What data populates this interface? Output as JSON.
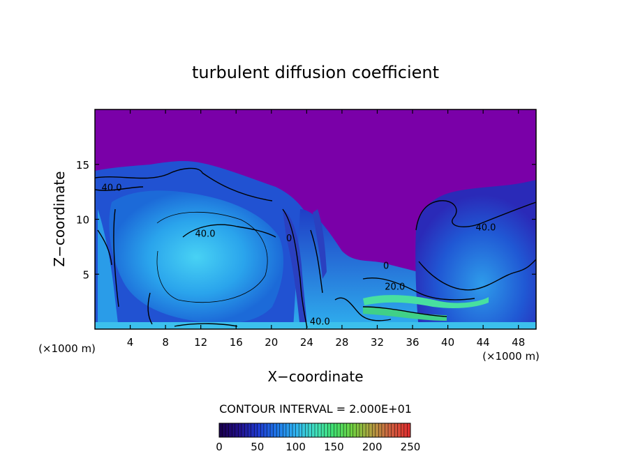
{
  "chart_data": {
    "type": "heatmap",
    "title": "turbulent diffusion coefficient",
    "xlabel": "X−coordinate",
    "ylabel": "Z−coordinate",
    "x_unit_left": "(×1000 m)",
    "x_unit_right": "(×1000 m)",
    "xlim": [
      0,
      50
    ],
    "ylim": [
      0,
      20
    ],
    "x_ticks": [
      4,
      8,
      12,
      16,
      20,
      24,
      28,
      32,
      36,
      40,
      44,
      48
    ],
    "y_ticks": [
      5,
      10,
      15
    ],
    "contour_interval_text": "CONTOUR INTERVAL = 2.000E+01",
    "contour_labels": [
      {
        "text": "40.0",
        "x": 1.9,
        "z": 12.6
      },
      {
        "text": "40.0",
        "x": 12.5,
        "z": 8.4
      },
      {
        "text": "40.0",
        "x": 44.3,
        "z": 9.0
      },
      {
        "text": "40.0",
        "x": 25.5,
        "z": 0.4
      },
      {
        "text": "0",
        "x": 22.0,
        "z": 8.0
      },
      {
        "text": "0",
        "x": 33.0,
        "z": 5.5
      },
      {
        "text": "20.0",
        "x": 34.0,
        "z": 3.6
      }
    ],
    "colorbar": {
      "ticks": [
        0,
        50,
        100,
        150,
        200,
        250
      ],
      "range": [
        0,
        250
      ],
      "colors": [
        "#1a0050",
        "#22108c",
        "#1e3ad0",
        "#1e78e8",
        "#30b4f0",
        "#40e0c0",
        "#40e070",
        "#70d040",
        "#b0a040",
        "#d06040",
        "#e03030"
      ]
    },
    "field_colors": {
      "background_top": "#7a00a8",
      "low": "#1f2ac8",
      "mid": "#1e8ae8",
      "high": "#40c8f0",
      "peak": "#40e080"
    }
  }
}
